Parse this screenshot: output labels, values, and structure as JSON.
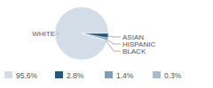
{
  "chart_data": {
    "type": "pie",
    "categories": [
      "WHITE",
      "ASIAN",
      "HISPANIC",
      "BLACK"
    ],
    "values": [
      95.6,
      2.8,
      1.4,
      0.3
    ],
    "value_labels": [
      "95.6%",
      "2.8%",
      "1.4%",
      "0.3%"
    ],
    "colors": [
      "#d3dde7",
      "#25577b",
      "#7f9db6",
      "#a9bbcc"
    ],
    "legend": "bottom"
  }
}
